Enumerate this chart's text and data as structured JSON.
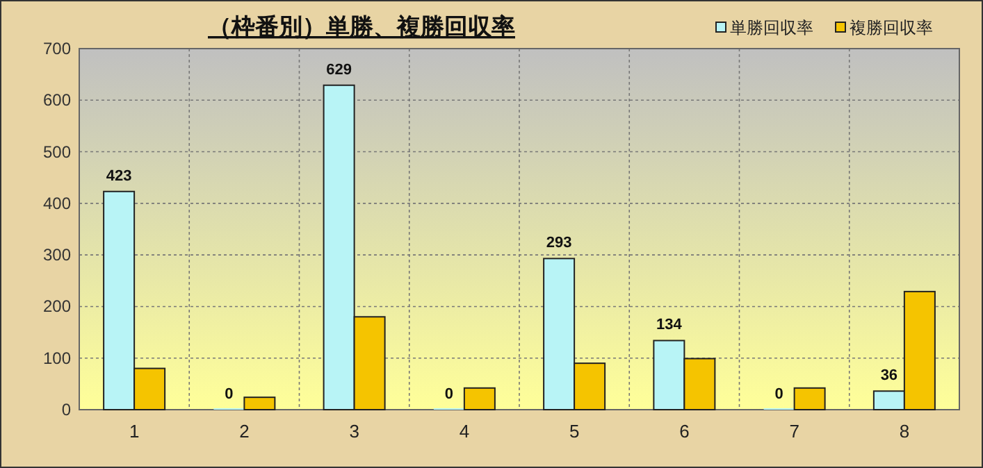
{
  "chart_data": {
    "type": "bar",
    "title": "（枠番別）単勝、複勝回収率",
    "categories": [
      "1",
      "2",
      "3",
      "4",
      "5",
      "6",
      "7",
      "8"
    ],
    "series": [
      {
        "name": "単勝回収率",
        "color": "#b8f4f6",
        "values": [
          423,
          0,
          629,
          0,
          293,
          134,
          0,
          36
        ],
        "value_labels": [
          "423",
          "0",
          "629",
          "0",
          "293",
          "134",
          "0",
          "36"
        ]
      },
      {
        "name": "複勝回収率",
        "color": "#f5c400",
        "values": [
          80,
          24,
          180,
          42,
          90,
          99,
          42,
          229
        ]
      }
    ],
    "ylim": [
      0,
      700
    ],
    "yticks": [
      0,
      100,
      200,
      300,
      400,
      500,
      600,
      700
    ],
    "grid": true,
    "legend": "top right"
  }
}
